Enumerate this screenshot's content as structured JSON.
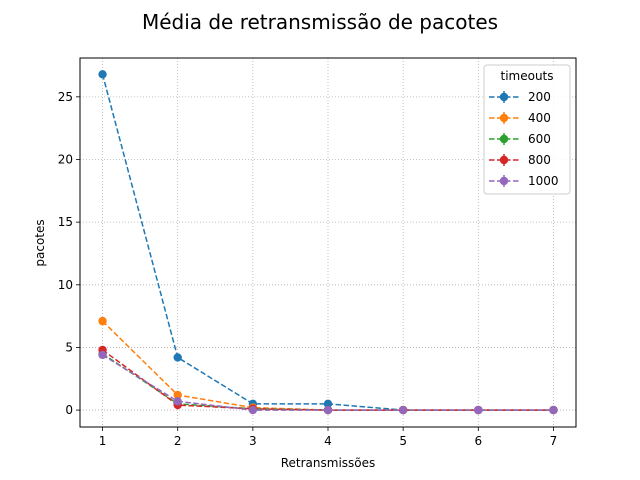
{
  "chart_data": {
    "type": "line",
    "title": "Média de retransmissão de pacotes",
    "xlabel": "Retransmissões",
    "ylabel": "pacotes",
    "x": [
      1,
      2,
      3,
      4,
      5,
      6,
      7
    ],
    "xlim": [
      0.7,
      7.3
    ],
    "ylim": [
      -1.35,
      28.1
    ],
    "xticks": [
      "1",
      "2",
      "3",
      "4",
      "5",
      "6",
      "7"
    ],
    "yticks": [
      "0",
      "5",
      "10",
      "15",
      "20",
      "25"
    ],
    "grid": true,
    "grid_style": "dotted",
    "legend_title": "timeouts",
    "legend_position": "top-right",
    "line_style": "dashed",
    "marker": "circle-with-errorbar",
    "series": [
      {
        "name": "200",
        "color": "#1f77b4",
        "values": [
          26.8,
          4.2,
          0.5,
          0.5,
          0.0,
          0.0,
          0.0
        ]
      },
      {
        "name": "400",
        "color": "#ff7f0e",
        "values": [
          7.1,
          1.2,
          0.2,
          0.0,
          0.0,
          0.0,
          0.0
        ]
      },
      {
        "name": "600",
        "color": "#2ca02c",
        "values": [
          4.5,
          0.5,
          0.1,
          0.0,
          0.0,
          0.0,
          0.0
        ]
      },
      {
        "name": "800",
        "color": "#d62728",
        "values": [
          4.8,
          0.4,
          0.1,
          0.0,
          0.0,
          0.0,
          0.0
        ]
      },
      {
        "name": "1000",
        "color": "#9467bd",
        "values": [
          4.4,
          0.7,
          0.0,
          0.0,
          0.0,
          0.0,
          0.0
        ]
      }
    ]
  }
}
